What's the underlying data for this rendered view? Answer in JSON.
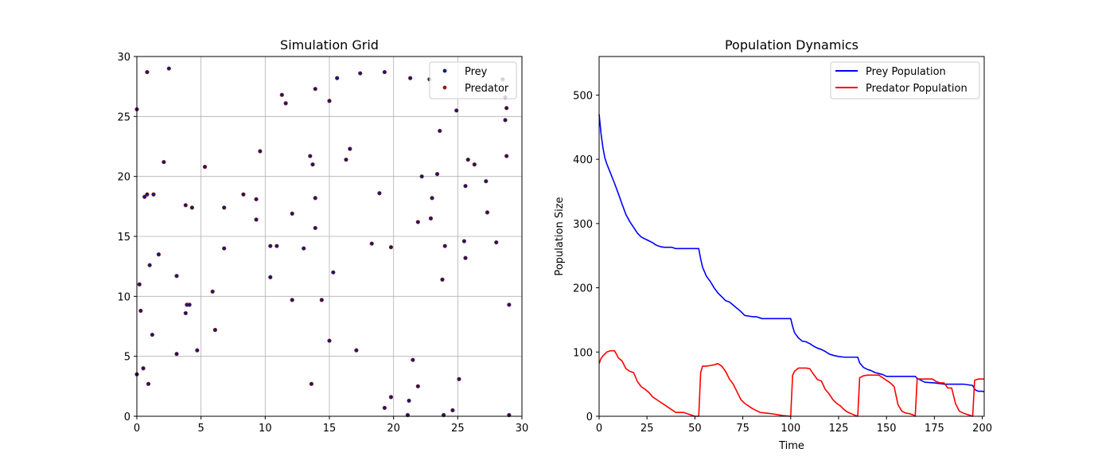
{
  "chart_data": [
    {
      "type": "scatter",
      "title": "Simulation Grid",
      "xlabel": "",
      "ylabel": "",
      "xlim": [
        0,
        30
      ],
      "ylim": [
        0,
        30
      ],
      "xticks": [
        0,
        5,
        10,
        15,
        20,
        25,
        30
      ],
      "yticks": [
        0,
        5,
        10,
        15,
        20,
        25,
        30
      ],
      "grid": true,
      "legend_position": "top-right",
      "series": [
        {
          "name": "Prey",
          "color": "#0b1a78",
          "points": [
            [
              0.0,
              25.6
            ],
            [
              0.8,
              28.7
            ],
            [
              2.5,
              29.0
            ],
            [
              0.2,
              11.0
            ],
            [
              0.3,
              8.8
            ],
            [
              0.5,
              4.0
            ],
            [
              0.0,
              3.5
            ],
            [
              0.6,
              18.3
            ],
            [
              0.8,
              18.5
            ],
            [
              1.3,
              18.5
            ],
            [
              1.0,
              12.6
            ],
            [
              1.7,
              13.5
            ],
            [
              1.2,
              6.8
            ],
            [
              0.9,
              2.7
            ],
            [
              2.1,
              21.2
            ],
            [
              3.1,
              11.7
            ],
            [
              3.1,
              5.2
            ],
            [
              3.8,
              17.6
            ],
            [
              4.3,
              17.4
            ],
            [
              3.8,
              8.6
            ],
            [
              3.9,
              9.3
            ],
            [
              4.1,
              9.3
            ],
            [
              4.7,
              5.5
            ],
            [
              5.3,
              20.8
            ],
            [
              5.9,
              10.4
            ],
            [
              6.1,
              7.2
            ],
            [
              6.8,
              17.4
            ],
            [
              6.8,
              14.0
            ],
            [
              8.3,
              18.5
            ],
            [
              9.3,
              18.1
            ],
            [
              9.6,
              22.1
            ],
            [
              9.3,
              16.4
            ],
            [
              10.4,
              14.2
            ],
            [
              10.9,
              14.2
            ],
            [
              10.4,
              11.6
            ],
            [
              11.3,
              26.8
            ],
            [
              11.6,
              26.1
            ],
            [
              12.1,
              16.9
            ],
            [
              12.1,
              9.7
            ],
            [
              13.0,
              14.0
            ],
            [
              13.5,
              21.7
            ],
            [
              13.7,
              21.0
            ],
            [
              13.9,
              27.3
            ],
            [
              13.9,
              18.2
            ],
            [
              13.9,
              15.7
            ],
            [
              13.6,
              2.7
            ],
            [
              14.4,
              9.7
            ],
            [
              15.0,
              26.3
            ],
            [
              15.6,
              28.2
            ],
            [
              15.3,
              12.0
            ],
            [
              15.0,
              6.3
            ],
            [
              16.3,
              21.4
            ],
            [
              16.6,
              22.3
            ],
            [
              17.4,
              28.6
            ],
            [
              17.1,
              5.5
            ],
            [
              18.3,
              14.4
            ],
            [
              18.9,
              18.6
            ],
            [
              19.3,
              28.7
            ],
            [
              19.8,
              14.1
            ],
            [
              19.8,
              1.6
            ],
            [
              19.3,
              0.7
            ],
            [
              21.3,
              28.2
            ],
            [
              22.2,
              20.0
            ],
            [
              21.9,
              16.2
            ],
            [
              21.5,
              4.7
            ],
            [
              21.9,
              2.5
            ],
            [
              21.2,
              1.3
            ],
            [
              21.1,
              0.1
            ],
            [
              22.8,
              28.1
            ],
            [
              23.4,
              20.2
            ],
            [
              23.0,
              18.2
            ],
            [
              22.9,
              16.5
            ],
            [
              23.6,
              23.8
            ],
            [
              24.0,
              14.2
            ],
            [
              23.8,
              11.4
            ],
            [
              23.9,
              0.1
            ],
            [
              24.6,
              0.5
            ],
            [
              24.9,
              25.5
            ],
            [
              25.1,
              3.1
            ],
            [
              25.6,
              19.2
            ],
            [
              25.5,
              14.6
            ],
            [
              25.6,
              13.2
            ],
            [
              25.8,
              21.4
            ],
            [
              26.3,
              21.0
            ],
            [
              27.2,
              19.6
            ],
            [
              27.3,
              17.0
            ],
            [
              28.0,
              14.5
            ],
            [
              28.5,
              28.1
            ],
            [
              28.7,
              26.6
            ],
            [
              28.8,
              25.7
            ],
            [
              28.7,
              24.7
            ],
            [
              28.8,
              21.7
            ],
            [
              29.0,
              9.3
            ],
            [
              29.0,
              0.1
            ]
          ]
        },
        {
          "name": "Predator",
          "color": "#8b1a1a",
          "points": []
        }
      ]
    },
    {
      "type": "line",
      "title": "Population Dynamics",
      "xlabel": "Time",
      "ylabel": "Population Size",
      "xlim": [
        0,
        201
      ],
      "ylim": [
        0,
        560
      ],
      "xticks": [
        0,
        25,
        50,
        75,
        100,
        125,
        150,
        175,
        200
      ],
      "yticks": [
        0,
        100,
        200,
        300,
        400,
        500
      ],
      "grid": false,
      "legend_position": "top-right",
      "series": [
        {
          "name": "Prey Population",
          "color": "#0000ff",
          "x": [
            0,
            1,
            2,
            3,
            4,
            6,
            8,
            10,
            12,
            14,
            16,
            18,
            20,
            22,
            24,
            26,
            28,
            30,
            32,
            34,
            38,
            40,
            45,
            50,
            52,
            53,
            54,
            56,
            58,
            60,
            62,
            64,
            66,
            68,
            70,
            72,
            74,
            76,
            80,
            82,
            85,
            90,
            95,
            100,
            101,
            102,
            104,
            106,
            108,
            110,
            112,
            114,
            116,
            118,
            120,
            122,
            125,
            128,
            130,
            135,
            136,
            138,
            140,
            142,
            144,
            148,
            150,
            155,
            160,
            165,
            166,
            168,
            170,
            175,
            180,
            185,
            190,
            195,
            196,
            197,
            198,
            200,
            201
          ],
          "values": [
            470,
            440,
            418,
            402,
            393,
            378,
            363,
            347,
            330,
            314,
            303,
            294,
            285,
            279,
            276,
            273,
            270,
            266,
            264,
            263,
            263,
            261,
            261,
            261,
            261,
            245,
            232,
            218,
            210,
            200,
            192,
            186,
            180,
            178,
            173,
            168,
            163,
            157,
            155,
            155,
            152,
            152,
            152,
            152,
            140,
            130,
            122,
            117,
            116,
            113,
            109,
            106,
            104,
            101,
            97,
            95,
            93,
            92,
            92,
            92,
            83,
            76,
            73,
            71,
            68,
            65,
            62,
            62,
            62,
            62,
            59,
            56,
            53,
            52,
            50,
            50,
            50,
            48,
            42,
            40,
            39,
            39,
            38
          ]
        },
        {
          "name": "Predator Population",
          "color": "#ff0000",
          "x": [
            0,
            1,
            2,
            4,
            6,
            8,
            9,
            10,
            12,
            14,
            16,
            18,
            20,
            22,
            24,
            26,
            28,
            30,
            32,
            34,
            36,
            38,
            40,
            44,
            46,
            48,
            50,
            52,
            53,
            54,
            56,
            58,
            60,
            62,
            64,
            66,
            68,
            70,
            72,
            74,
            76,
            78,
            80,
            84,
            90,
            96,
            100,
            101,
            102,
            104,
            106,
            108,
            110,
            112,
            114,
            116,
            118,
            120,
            122,
            124,
            126,
            128,
            130,
            134,
            135,
            136,
            138,
            140,
            144,
            146,
            150,
            152,
            154,
            156,
            158,
            160,
            162,
            164,
            165,
            166,
            170,
            172,
            174,
            176,
            178,
            180,
            182,
            184,
            186,
            188,
            190,
            194,
            195,
            196,
            198,
            200,
            201
          ],
          "values": [
            82,
            90,
            94,
            100,
            102,
            102,
            97,
            91,
            86,
            74,
            70,
            68,
            54,
            46,
            42,
            37,
            30,
            26,
            22,
            18,
            14,
            10,
            6,
            6,
            4,
            2,
            0,
            0,
            68,
            78,
            78,
            79,
            80,
            82,
            78,
            70,
            58,
            50,
            38,
            26,
            20,
            16,
            12,
            6,
            4,
            1,
            0,
            64,
            70,
            75,
            75,
            75,
            74,
            65,
            57,
            55,
            42,
            35,
            26,
            20,
            16,
            10,
            6,
            1,
            0,
            60,
            63,
            64,
            64,
            64,
            56,
            52,
            46,
            18,
            8,
            5,
            4,
            2,
            0,
            58,
            58,
            58,
            58,
            54,
            52,
            52,
            44,
            44,
            20,
            8,
            5,
            1,
            0,
            56,
            58,
            58,
            58
          ]
        }
      ]
    }
  ]
}
